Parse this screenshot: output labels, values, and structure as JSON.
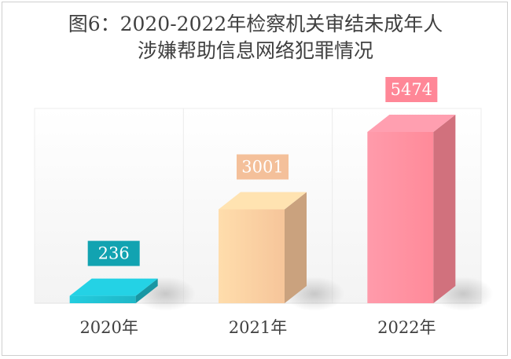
{
  "chart_data": {
    "type": "bar",
    "title_line1": "图6：2020-2022年检察机关审结未成年人",
    "title_line2": "涉嫌帮助信息网络犯罪情况",
    "categories": [
      "2020年",
      "2021年",
      "2022年"
    ],
    "values": [
      236,
      3001,
      5474
    ],
    "data_labels": [
      "236",
      "3001",
      "5474"
    ],
    "ylim": [
      0,
      5474
    ],
    "grid": false,
    "legend": "none"
  },
  "colors": {
    "series": [
      "#1fb7c7",
      "#f6c59a",
      "#ff8a99"
    ],
    "label_bg": [
      "#12a3b1",
      "#f4c09a",
      "#ff8797"
    ],
    "label_text": [
      "#ffffff",
      "#ffffff",
      "#ffffff"
    ],
    "axis_text": "#404040",
    "title_text": "#404040"
  }
}
